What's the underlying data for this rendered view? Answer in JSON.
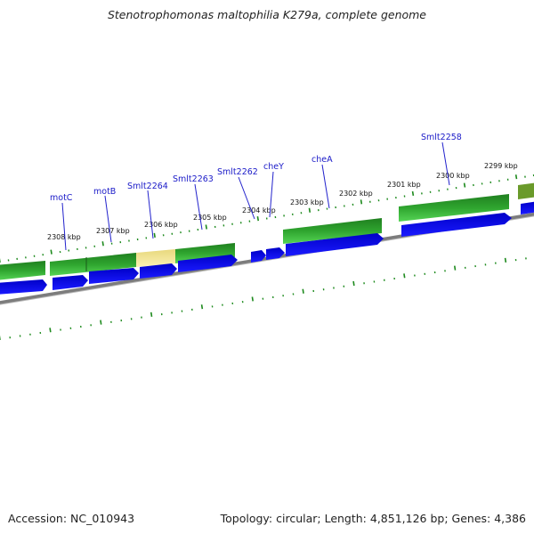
{
  "title": "Stenotrophomonas maltophilia K279a, complete genome",
  "footer": {
    "accession": "Accession: NC_010943",
    "summary": "Topology: circular; Length: 4,851,126 bp; Genes: 4,386"
  },
  "colors": {
    "cds_blue": "#0000e6",
    "gene_green_dark": "#1f7f1f",
    "gene_green_light": "#44cc44",
    "highlight_yellow": "#f2e49a",
    "tick_green": "#1d8a1d",
    "backbone_gray": "#7c7c7c",
    "label_blue": "#1a1ac8"
  },
  "kbp_labels": [
    "2308 kbp",
    "2307 kbp",
    "2306 kbp",
    "2305 kbp",
    "2304 kbp",
    "2303 kbp",
    "2302 kbp",
    "2301 kbp",
    "2300 kbp",
    "2299 kbp"
  ],
  "gene_labels": [
    "motC",
    "motB",
    "Smlt2264",
    "Smlt2263",
    "Smlt2262",
    "cheY",
    "cheA",
    "Smlt2258"
  ]
}
